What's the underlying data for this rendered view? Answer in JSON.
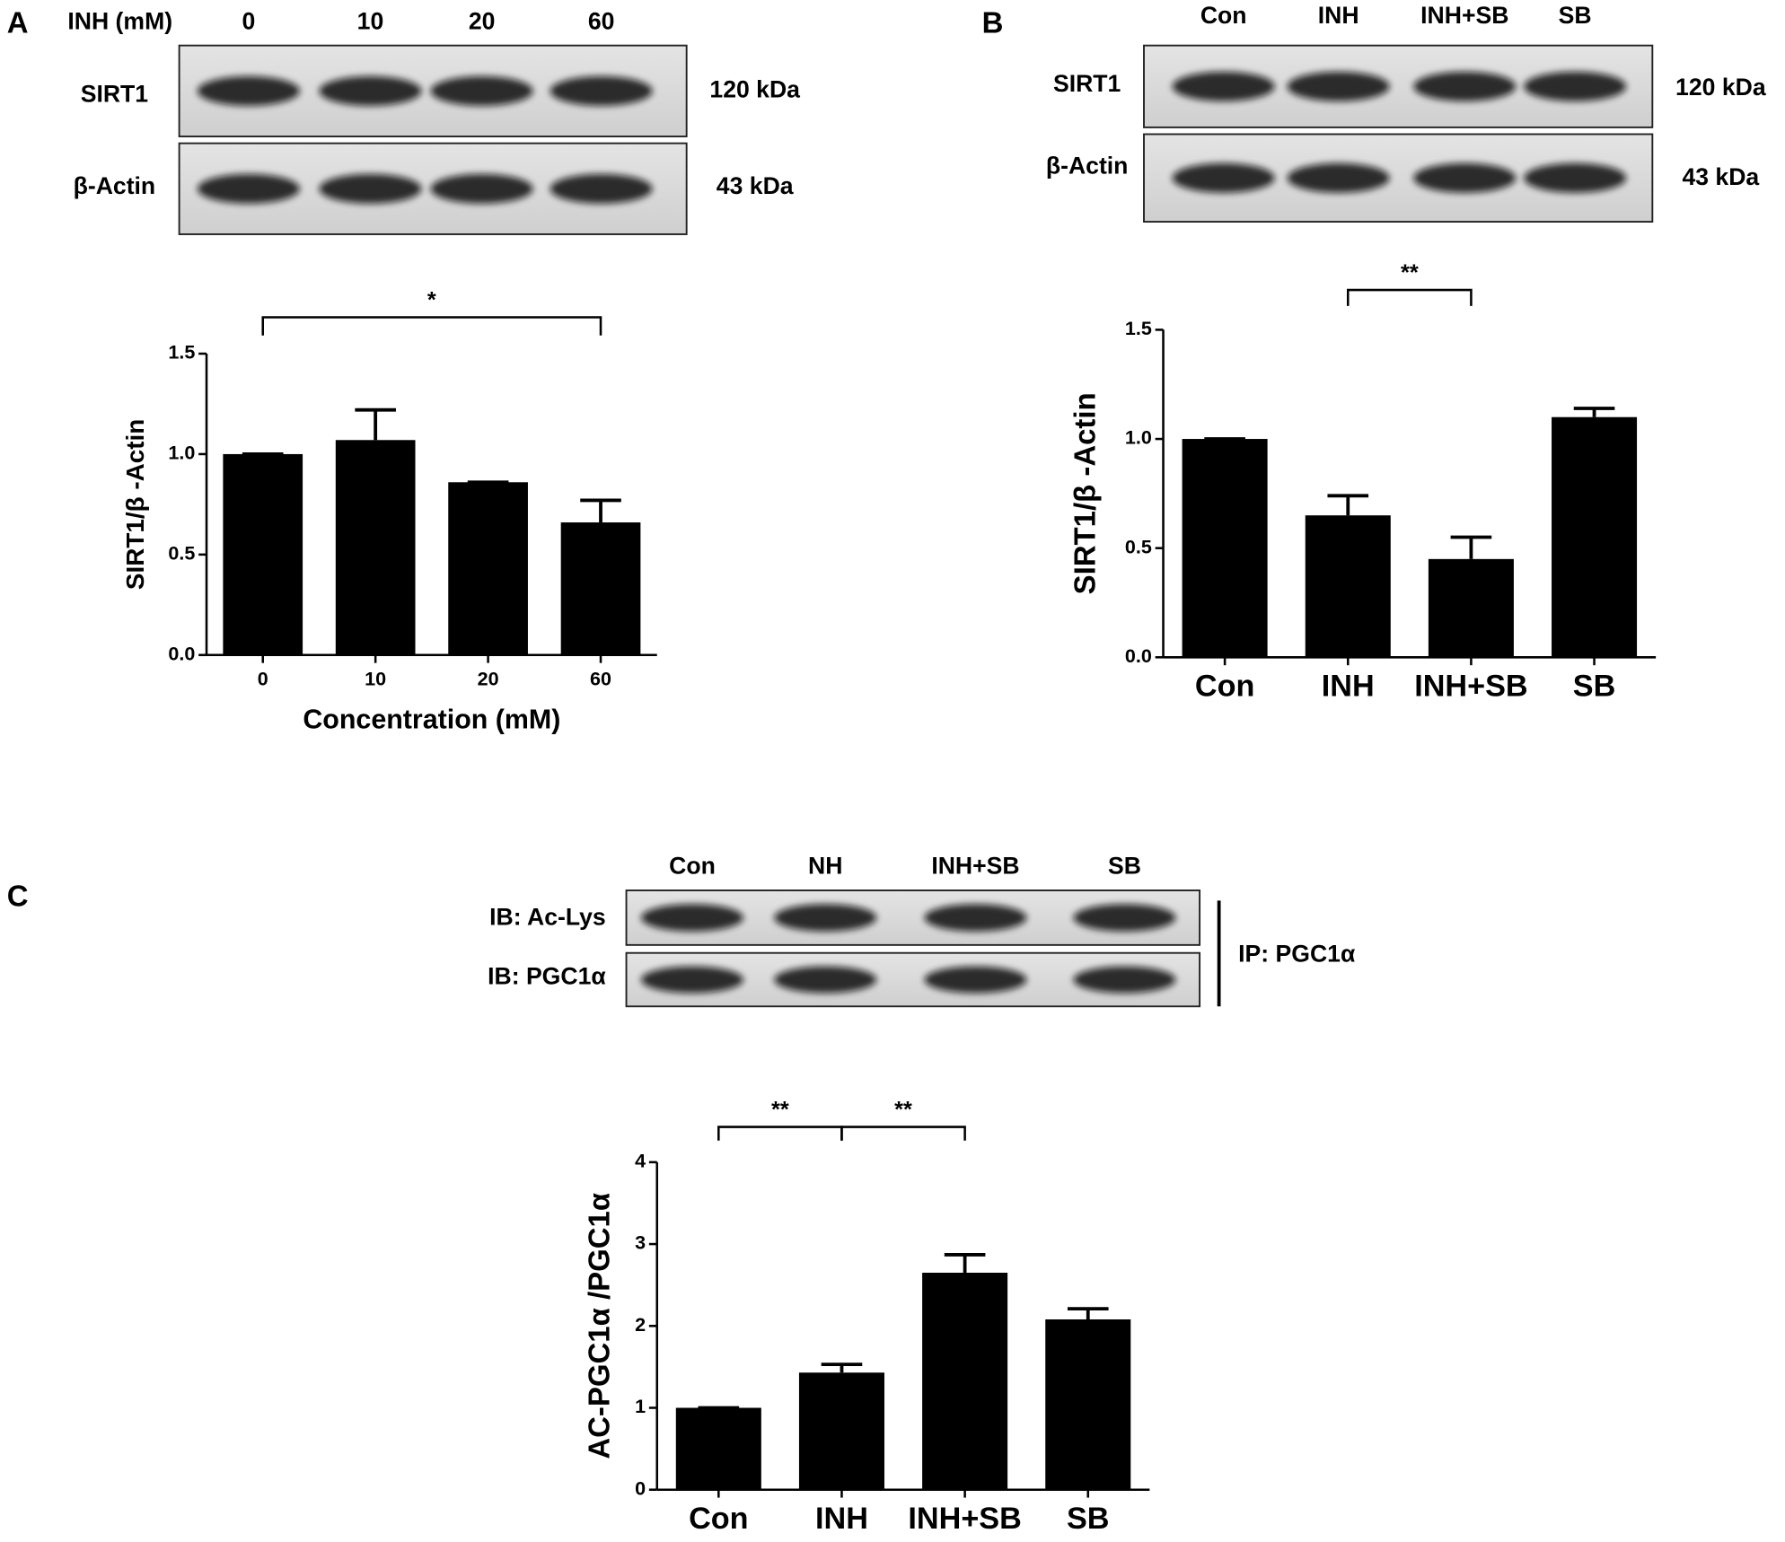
{
  "chart_data": [
    {
      "type": "bar",
      "panel": "A",
      "y_label": "SIRT1/β -Actin",
      "x_label": "Concentration (mM)",
      "categories": [
        "0",
        "10",
        "20",
        "60"
      ],
      "values": [
        1.0,
        1.07,
        0.86,
        0.66
      ],
      "errors": [
        0,
        0.15,
        0,
        0.11
      ],
      "color": "#000000",
      "ylim": [
        0,
        1.5
      ],
      "yticks": [
        {
          "value": 0,
          "label": "0.0"
        },
        0.5,
        {
          "value": 1,
          "label": "1.0"
        },
        1.5
      ],
      "annotations": [
        {
          "text": "*",
          "between": [
            0,
            3
          ]
        }
      ],
      "blot": {
        "header": "INH (mM)",
        "lanes": [
          "0",
          "10",
          "20",
          "60"
        ],
        "rows": [
          "SIRT1",
          "β-Actin"
        ],
        "sizes": [
          "120 kDa",
          "43 kDa"
        ]
      }
    },
    {
      "type": "bar",
      "panel": "B",
      "y_label": "SIRT1/β -Actin",
      "categories": [
        "Con",
        "INH",
        "INH+SB",
        "SB"
      ],
      "values": [
        1.0,
        0.65,
        0.45,
        1.1
      ],
      "errors": [
        0,
        0.09,
        0.1,
        0.04
      ],
      "color": "#000000",
      "ylim": [
        0,
        1.5
      ],
      "yticks": [
        {
          "value": 0,
          "label": "0.0"
        },
        0.5,
        {
          "value": 1,
          "label": "1.0"
        },
        1.5
      ],
      "annotations": [
        {
          "text": "**",
          "between": [
            1,
            2
          ]
        }
      ],
      "blot": {
        "lanes": [
          "Con",
          "INH",
          "INH+SB",
          "SB"
        ],
        "rows": [
          "SIRT1",
          "β-Actin"
        ],
        "sizes": [
          "120 kDa",
          "43 kDa"
        ]
      }
    },
    {
      "type": "bar",
      "panel": "C",
      "y_label": "AC-PGC1α /PGC1α",
      "categories": [
        "Con",
        "INH",
        "INH+SB",
        "SB"
      ],
      "values": [
        1.0,
        1.43,
        2.65,
        2.08
      ],
      "errors": [
        0,
        0.1,
        0.22,
        0.13
      ],
      "color": "#000000",
      "ylim": [
        0,
        4
      ],
      "yticks": [
        0,
        1,
        2,
        3,
        4
      ],
      "annotations": [
        {
          "text": "**",
          "between": [
            0,
            1
          ]
        },
        {
          "text": "**",
          "between": [
            1,
            2
          ]
        }
      ],
      "blot": {
        "lanes": [
          "Con",
          "NH",
          "INH+SB",
          "SB"
        ],
        "rows": [
          "IB: Ac-Lys",
          "IB: PGC1α"
        ],
        "side": "IP: PGC1α"
      }
    }
  ]
}
